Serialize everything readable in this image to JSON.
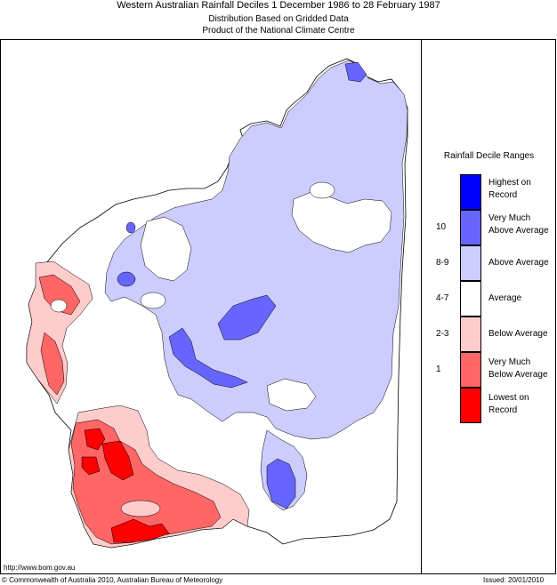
{
  "header": {
    "title": "Western Australian Rainfall Deciles      1 December 1986 to 28 February 1987",
    "subtitle1": "Distribution Based on Gridded Data",
    "subtitle2": "Product of the National Climate Centre"
  },
  "legend": {
    "title": "Rainfall Decile Ranges",
    "items": [
      {
        "label": "Highest on Record",
        "code": "",
        "color": "#0000ff"
      },
      {
        "label": "Very Much Above Average",
        "code": "10",
        "color": "#6666ff"
      },
      {
        "label": "Above Average",
        "code": "8-9",
        "color": "#ccccff"
      },
      {
        "label": "Average",
        "code": "4-7",
        "color": "#ffffff"
      },
      {
        "label": "Below Average",
        "code": "2-3",
        "color": "#ffcccc"
      },
      {
        "label": "Very Much Below Average",
        "code": "1",
        "color": "#ff6666"
      },
      {
        "label": "Lowest on Record",
        "code": "",
        "color": "#ff0000"
      }
    ]
  },
  "footer": {
    "url": "http://www.bom.gov.au",
    "copyright": "© Commonwealth of Australia 2010, Australian Bureau of Meteorology",
    "issued": "Issued: 20/01/2010"
  }
}
